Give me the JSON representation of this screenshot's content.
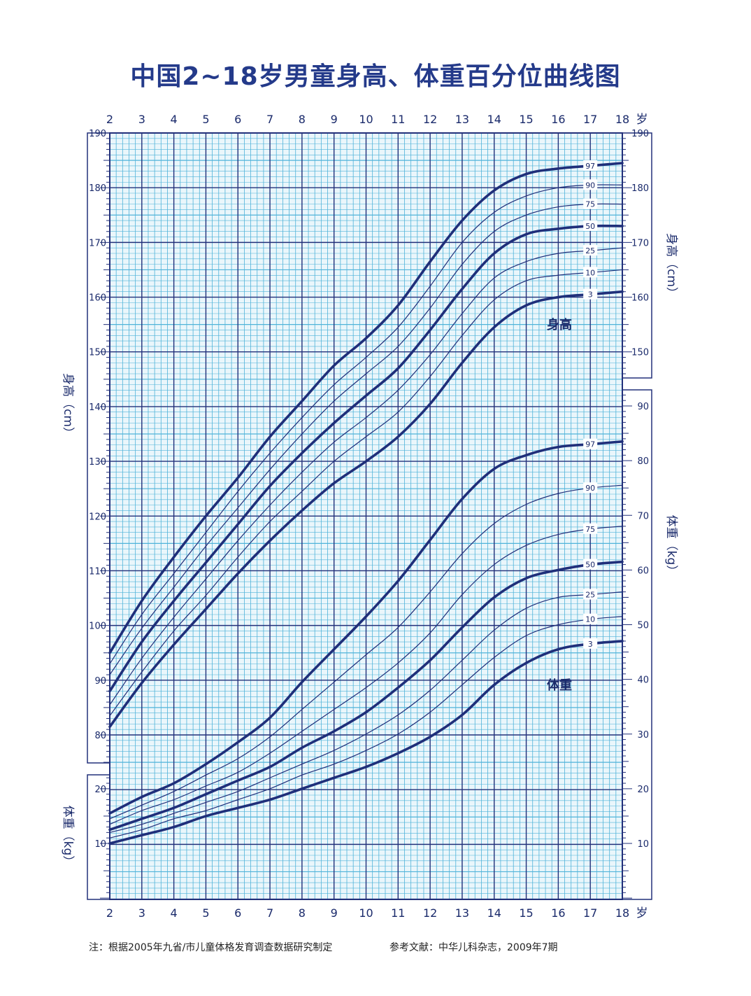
{
  "title": "中国2~18岁男童身高、体重百分位曲线图",
  "notes": {
    "left": "注：根据2005年九省/市儿童体格发育调查数据研究制定",
    "right": "参考文献：中华儿科杂志，2009年7期"
  },
  "colors": {
    "title": "#243a8a",
    "major_grid": "#22307a",
    "minor_grid": "#4fb3d9",
    "curve": "#1f2f7a"
  },
  "chart_data": {
    "type": "line",
    "x_axis": {
      "ticks": [
        2,
        3,
        4,
        5,
        6,
        7,
        8,
        9,
        10,
        11,
        12,
        13,
        14,
        15,
        16,
        17,
        18
      ],
      "unit": "岁",
      "range": [
        2,
        18
      ]
    },
    "height_axis": {
      "label": "身高（cm）",
      "ticks": [
        80,
        90,
        100,
        110,
        120,
        130,
        140,
        150,
        160,
        170,
        180,
        190
      ],
      "range": [
        75,
        190
      ]
    },
    "weight_axis_right": {
      "label": "体重（kg）",
      "ticks": [
        10,
        20,
        30,
        40,
        50,
        60,
        70,
        80,
        90
      ],
      "range": [
        0,
        90
      ]
    },
    "weight_axis_left": {
      "label": "体重（kg）",
      "ticks": [
        10,
        20
      ]
    },
    "curve_group_labels": {
      "height": "身高",
      "weight": "体重"
    },
    "height_series": [
      {
        "name": "97",
        "x": [
          2,
          3,
          4,
          5,
          6,
          7,
          8,
          9,
          10,
          11,
          12,
          13,
          14,
          15,
          16,
          17,
          18
        ],
        "y": [
          95.0,
          104.5,
          112.5,
          120.0,
          127.0,
          134.5,
          141.0,
          147.5,
          152.5,
          158.5,
          166.5,
          174.0,
          179.5,
          182.5,
          183.5,
          184.0,
          184.5
        ]
      },
      {
        "name": "90",
        "x": [
          2,
          3,
          4,
          5,
          6,
          7,
          8,
          9,
          10,
          11,
          12,
          13,
          14,
          15,
          16,
          17,
          18
        ],
        "y": [
          93.0,
          102.0,
          109.5,
          117.0,
          124.5,
          131.5,
          138.0,
          144.0,
          149.0,
          154.5,
          162.0,
          170.0,
          175.5,
          178.5,
          180.0,
          180.5,
          180.5
        ]
      },
      {
        "name": "75",
        "x": [
          2,
          3,
          4,
          5,
          6,
          7,
          8,
          9,
          10,
          11,
          12,
          13,
          14,
          15,
          16,
          17,
          18
        ],
        "y": [
          91.0,
          99.5,
          107.0,
          114.5,
          121.5,
          128.5,
          135.0,
          141.0,
          146.0,
          151.0,
          158.0,
          166.0,
          172.0,
          175.0,
          176.5,
          177.0,
          177.0
        ]
      },
      {
        "name": "50",
        "x": [
          2,
          3,
          4,
          5,
          6,
          7,
          8,
          9,
          10,
          11,
          12,
          13,
          14,
          15,
          16,
          17,
          18
        ],
        "y": [
          88.0,
          97.0,
          104.5,
          111.5,
          118.5,
          125.5,
          131.5,
          137.0,
          142.0,
          147.0,
          154.0,
          161.5,
          168.0,
          171.5,
          172.5,
          173.0,
          173.0
        ]
      },
      {
        "name": "25",
        "x": [
          2,
          3,
          4,
          5,
          6,
          7,
          8,
          9,
          10,
          11,
          12,
          13,
          14,
          15,
          16,
          17,
          18
        ],
        "y": [
          85.5,
          94.0,
          101.5,
          108.5,
          115.5,
          122.0,
          128.0,
          133.5,
          138.0,
          143.0,
          149.5,
          157.0,
          163.5,
          166.5,
          168.0,
          168.5,
          169.0
        ]
      },
      {
        "name": "10",
        "x": [
          2,
          3,
          4,
          5,
          6,
          7,
          8,
          9,
          10,
          11,
          12,
          13,
          14,
          15,
          16,
          17,
          18
        ],
        "y": [
          83.5,
          91.5,
          99.0,
          105.5,
          112.5,
          119.0,
          124.5,
          130.0,
          134.5,
          139.0,
          145.5,
          153.0,
          159.5,
          163.0,
          164.0,
          164.5,
          165.0
        ]
      },
      {
        "name": "3",
        "x": [
          2,
          3,
          4,
          5,
          6,
          7,
          8,
          9,
          10,
          11,
          12,
          13,
          14,
          15,
          16,
          17,
          18
        ],
        "y": [
          81.5,
          89.5,
          96.5,
          103.0,
          109.5,
          115.5,
          121.0,
          126.0,
          130.0,
          134.5,
          140.5,
          148.0,
          154.5,
          158.5,
          160.0,
          160.5,
          161.0
        ]
      }
    ],
    "weight_series": [
      {
        "name": "97",
        "x": [
          2,
          3,
          4,
          5,
          6,
          7,
          8,
          9,
          10,
          11,
          12,
          13,
          14,
          15,
          16,
          17,
          18
        ],
        "y": [
          15.5,
          18.5,
          21.0,
          24.5,
          28.5,
          33.0,
          39.5,
          45.5,
          51.5,
          58.0,
          65.5,
          73.0,
          78.5,
          81.0,
          82.5,
          83.0,
          83.5
        ]
      },
      {
        "name": "90",
        "x": [
          2,
          3,
          4,
          5,
          6,
          7,
          8,
          9,
          10,
          11,
          12,
          13,
          14,
          15,
          16,
          17,
          18
        ],
        "y": [
          14.5,
          17.0,
          19.5,
          22.5,
          25.5,
          29.5,
          34.5,
          39.5,
          44.5,
          49.5,
          56.0,
          63.0,
          68.5,
          72.0,
          74.0,
          75.0,
          75.5
        ]
      },
      {
        "name": "75",
        "x": [
          2,
          3,
          4,
          5,
          6,
          7,
          8,
          9,
          10,
          11,
          12,
          13,
          14,
          15,
          16,
          17,
          18
        ],
        "y": [
          13.5,
          16.0,
          18.0,
          20.5,
          23.0,
          26.5,
          30.5,
          34.5,
          38.5,
          43.0,
          48.5,
          55.5,
          61.0,
          64.5,
          66.5,
          67.5,
          68.0
        ]
      },
      {
        "name": "50",
        "x": [
          2,
          3,
          4,
          5,
          6,
          7,
          8,
          9,
          10,
          11,
          12,
          13,
          14,
          15,
          16,
          17,
          18
        ],
        "y": [
          12.5,
          14.5,
          16.5,
          19.0,
          21.5,
          24.0,
          27.5,
          30.5,
          34.0,
          38.5,
          43.5,
          49.5,
          55.0,
          58.5,
          60.0,
          61.0,
          61.5
        ]
      },
      {
        "name": "25",
        "x": [
          2,
          3,
          4,
          5,
          6,
          7,
          8,
          9,
          10,
          11,
          12,
          13,
          14,
          15,
          16,
          17,
          18
        ],
        "y": [
          12.0,
          13.5,
          15.5,
          17.5,
          19.5,
          22.0,
          24.5,
          27.0,
          30.0,
          33.5,
          38.0,
          43.5,
          49.0,
          53.0,
          55.0,
          55.5,
          56.0
        ]
      },
      {
        "name": "10",
        "x": [
          2,
          3,
          4,
          5,
          6,
          7,
          8,
          9,
          10,
          11,
          12,
          13,
          14,
          15,
          16,
          17,
          18
        ],
        "y": [
          11.0,
          12.5,
          14.5,
          16.0,
          18.0,
          20.0,
          22.5,
          24.5,
          27.0,
          30.0,
          34.0,
          39.0,
          44.0,
          48.0,
          50.0,
          51.0,
          51.5
        ]
      },
      {
        "name": "3",
        "x": [
          2,
          3,
          4,
          5,
          6,
          7,
          8,
          9,
          10,
          11,
          12,
          13,
          14,
          15,
          16,
          17,
          18
        ],
        "y": [
          10.0,
          11.5,
          13.0,
          15.0,
          16.5,
          18.0,
          20.0,
          22.0,
          24.0,
          26.5,
          29.5,
          33.5,
          39.0,
          43.0,
          45.5,
          46.5,
          47.0
        ]
      }
    ],
    "grid": true,
    "legend": "none"
  }
}
